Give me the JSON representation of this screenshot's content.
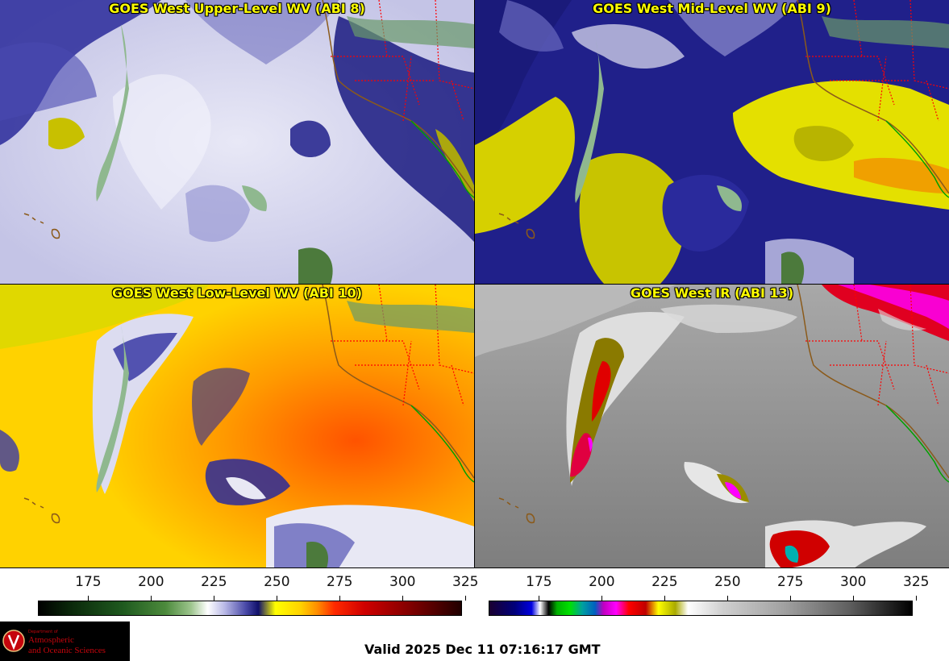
{
  "panels": [
    {
      "title": "GOES West Upper-Level WV (ABI 8)",
      "scheme": "wv_upper"
    },
    {
      "title": "GOES West Mid-Level WV (ABI 9)",
      "scheme": "wv_mid"
    },
    {
      "title": "GOES West Low-Level WV (ABI 10)",
      "scheme": "wv_low"
    },
    {
      "title": "GOES West IR (ABI 13)",
      "scheme": "ir"
    }
  ],
  "colorbars": [
    {
      "ticks": [
        "175",
        "200",
        "225",
        "250",
        "275",
        "300",
        "325"
      ],
      "range": [
        155,
        323
      ]
    },
    {
      "ticks": [
        "175",
        "200",
        "225",
        "250",
        "275",
        "300",
        "325"
      ],
      "range": [
        155,
        323
      ]
    }
  ],
  "logo": {
    "dept": "Department of",
    "line1": "Atmospheric",
    "line2": "and Oceanic Sciences"
  },
  "valid_time": "Valid 2025 Dec 11 07:16:17 GMT",
  "colors": {
    "state_borders": "#ff0000",
    "coastline": "#8b5a1a",
    "mexico_coast": "#00a000",
    "title_text": "#ffff00"
  }
}
